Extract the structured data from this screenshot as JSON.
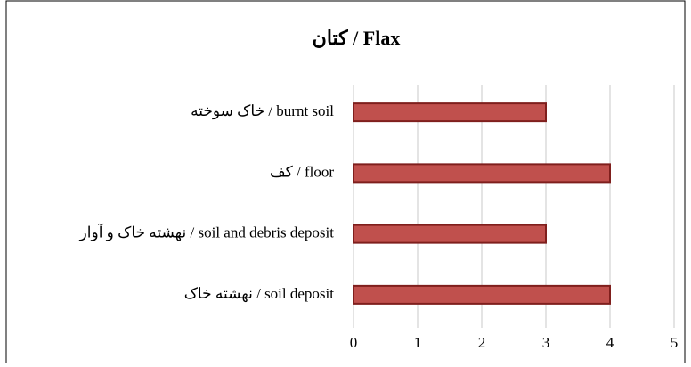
{
  "chart_data": {
    "type": "bar",
    "orientation": "horizontal",
    "title": "کتان / Flax",
    "categories": [
      "خاک سوخته / burnt soil",
      "کف / floor",
      "نهشته خاک و آوار / soil and debris deposit",
      "نهشته خاک / soil deposit"
    ],
    "values": [
      3,
      4,
      3,
      4
    ],
    "color": "#c0504d",
    "edgecolor": "#7f1f1d",
    "xlim": [
      0,
      5
    ],
    "xticks": [
      0,
      1,
      2,
      3,
      4,
      5
    ],
    "grid": true
  }
}
